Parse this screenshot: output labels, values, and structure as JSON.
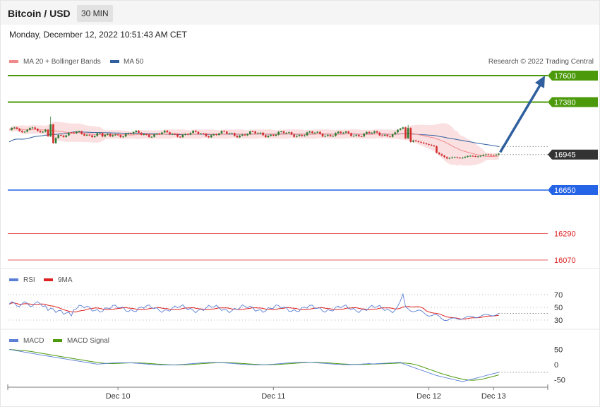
{
  "header": {
    "title": "Bitcoin / USD",
    "interval": "30 MIN",
    "datetime": "Monday, December 12, 2022 10:51:43 AM CET"
  },
  "colors": {
    "ma20": "#f08a8a",
    "ma50": "#2f5f9e",
    "resistance": "#4c9a0c",
    "support_blue": "#2564e6",
    "support_red": "#dd2222",
    "current": "#333333",
    "bull": "#2e7d32",
    "bear": "#d32f2f",
    "band": "#fbe0e2",
    "rsi": "#5b7fd6",
    "rsi_ma": "#e02020",
    "macd": "#5b7fd6",
    "macd_signal": "#4c9a0c",
    "arrow": "#2f5f9e"
  },
  "main_legend": {
    "ma": "MA 20 + Bollinger Bands",
    "ma50": "MA 50",
    "credit": "Research © 2022 Trading Central"
  },
  "rsi_legend": {
    "rsi": "RSI",
    "ma": "9MA"
  },
  "macd_legend": {
    "macd": "MACD",
    "signal": "MACD Signal"
  },
  "chart_data": [
    {
      "type": "candlestick",
      "ylim": [
        16000,
        17650
      ],
      "levels": [
        {
          "label": "17600",
          "value": 17600,
          "kind": "resistance"
        },
        {
          "label": "17380",
          "value": 17380,
          "kind": "resistance"
        },
        {
          "label": "16945",
          "value": 16945,
          "kind": "current"
        },
        {
          "label": "16650",
          "value": 16650,
          "kind": "support_blue"
        },
        {
          "label": "16290",
          "value": 16290,
          "kind": "support_red"
        },
        {
          "label": "16070",
          "value": 16070,
          "kind": "support_red"
        }
      ],
      "forecast_target": 17600
    },
    {
      "type": "line",
      "name": "RSI",
      "ylim": [
        25,
        75
      ],
      "yticks": [
        "70",
        "50",
        "30"
      ],
      "ytick_values": [
        70,
        50,
        30
      ]
    },
    {
      "type": "line",
      "name": "MACD",
      "ylim": [
        -70,
        70
      ],
      "yticks": [
        "50",
        "0",
        "-50"
      ],
      "ytick_values": [
        50,
        0,
        -50
      ]
    }
  ],
  "x_axis": {
    "ticks": [
      "Dec 10",
      "Dec 11",
      "Dec 12",
      "Dec 13"
    ],
    "tick_index": [
      42,
      102,
      162,
      187
    ]
  }
}
